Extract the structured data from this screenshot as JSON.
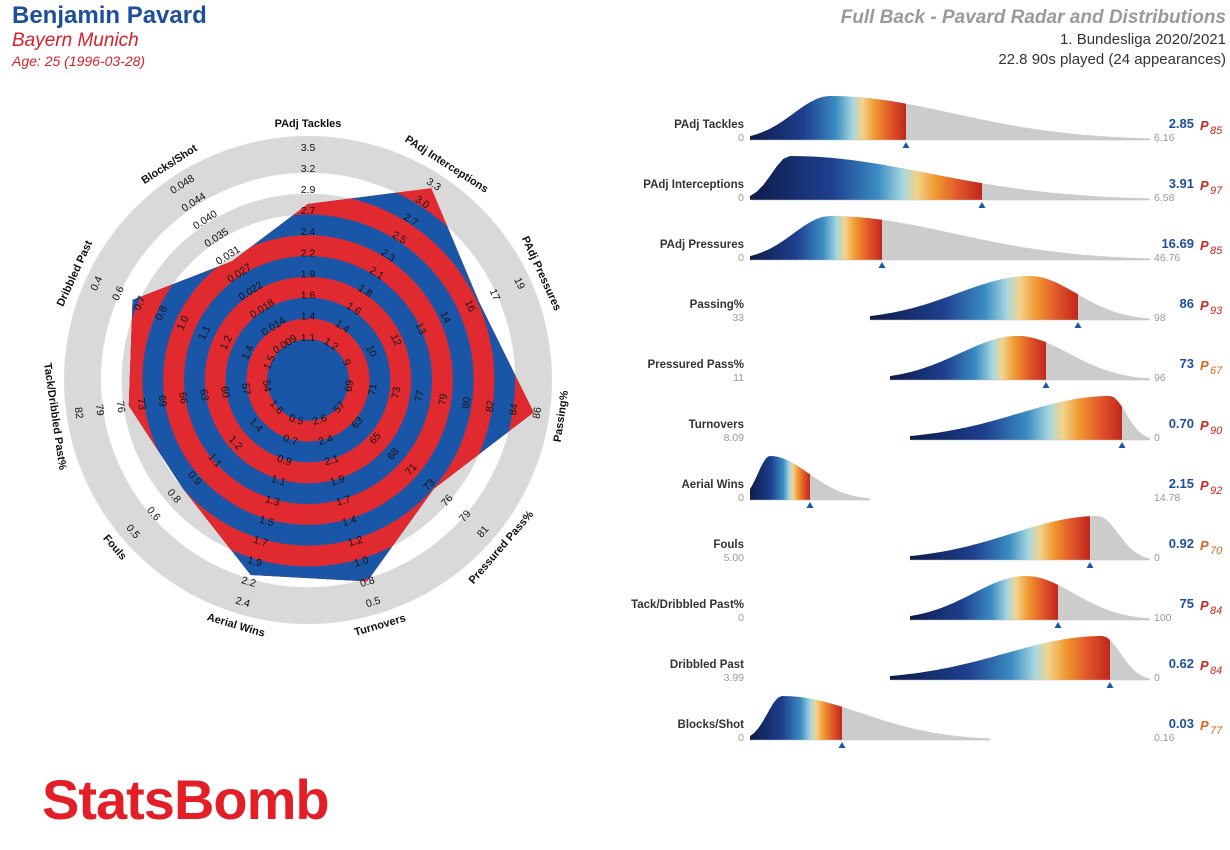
{
  "header": {
    "player_name": "Benjamin Pavard",
    "team": "Bayern Munich",
    "age": "Age: 25 (1996-03-28)",
    "title": "Full Back - Pavard Radar and Distributions",
    "league": "1. Bundesliga 2020/2021",
    "minutes": "22.8 90s played (24 appearances)"
  },
  "logo": {
    "text": "StatsBomb"
  },
  "colors": {
    "radar_blue": "#1a56a8",
    "radar_red": "#e02a30",
    "ring_grey": "#d9d9d9",
    "value_blue": "#1d4f9c",
    "percentile_red": "#c8281e",
    "percentile_orange": "#d2691e",
    "dist_grey": "#cccccc"
  },
  "chart_data": [
    {
      "type": "radar",
      "axes": [
        {
          "label": "PAdj Tackles",
          "ticks": [
            "1.1",
            "1.4",
            "1.6",
            "1.9",
            "2.2",
            "2.4",
            "2.7",
            "2.9",
            "3.2",
            "3.5"
          ],
          "value": 2.85,
          "range": [
            0.9,
            3.5
          ]
        },
        {
          "label": "PAdj Interceptions",
          "ticks": [
            "1.2",
            "1.4",
            "1.6",
            "1.8",
            "2.1",
            "2.3",
            "2.5",
            "2.7",
            "3.0",
            "3.3"
          ],
          "value": 3.91,
          "range": [
            1.0,
            3.3
          ]
        },
        {
          "label": "PAdj Pressures",
          "ticks": [
            "9",
            "10",
            "12",
            "13",
            "14",
            "16",
            "17",
            "19"
          ],
          "value": 16.69,
          "range": [
            7,
            19
          ]
        },
        {
          "label": "Passing%",
          "ticks": [
            "69",
            "71",
            "73",
            "77",
            "79",
            "80",
            "82",
            "84",
            "86"
          ],
          "value": 86,
          "range": [
            66,
            86
          ]
        },
        {
          "label": "Pressured Pass%",
          "ticks": [
            "57",
            "63",
            "65",
            "68",
            "71",
            "73",
            "76",
            "79",
            "81"
          ],
          "value": 73,
          "range": [
            54,
            81
          ]
        },
        {
          "label": "Turnovers",
          "ticks": [
            "2.6",
            "2.4",
            "2.1",
            "1.9",
            "1.7",
            "1.4",
            "1.2",
            "1.0",
            "0.8",
            "0.5"
          ],
          "value": 0.7,
          "range": [
            2.8,
            0.5
          ]
        },
        {
          "label": "Aerial Wins",
          "ticks": [
            "0.5",
            "0.7",
            "0.9",
            "1.1",
            "1.3",
            "1.5",
            "1.7",
            "1.9",
            "2.2",
            "2.4"
          ],
          "value": 2.15,
          "range": [
            0.3,
            2.4
          ]
        },
        {
          "label": "Fouls",
          "ticks": [
            "1.6",
            "1.4",
            "1.2",
            "1.1",
            "0.9",
            "0.8",
            "0.6",
            "0.5"
          ],
          "value": 0.92,
          "range": [
            1.9,
            0.5
          ]
        },
        {
          "label": "Tack/Dribbled Past%",
          "ticks": [
            "54",
            "57",
            "60",
            "63",
            "66",
            "69",
            "73",
            "76",
            "79",
            "82"
          ],
          "value": 75,
          "range": [
            51,
            82
          ]
        },
        {
          "label": "Dribbled Past",
          "ticks": [
            "1.5",
            "1.4",
            "1.2",
            "1.1",
            "1.0",
            "0.8",
            "0.7",
            "0.6",
            "0.4"
          ],
          "value": 0.62,
          "range": [
            1.7,
            0.4
          ]
        },
        {
          "label": "Blocks/Shot",
          "ticks": [
            "0.009",
            "0.014",
            "0.018",
            "0.022",
            "0.027",
            "0.031",
            "0.035",
            "0.040",
            "0.044",
            "0.048"
          ],
          "value": 0.03,
          "range": [
            0.005,
            0.048
          ]
        }
      ]
    },
    {
      "type": "area",
      "metrics": [
        {
          "label": "PAdj Tackles",
          "bold": false,
          "min_label": "0",
          "max_label": "6.16",
          "value": "2.85",
          "percentile": "85",
          "peak_frac": 0.2,
          "marker_frac": 0.39,
          "span": [
            0.0,
            1.0
          ],
          "pct_color": "red"
        },
        {
          "label": "PAdj Interceptions",
          "bold": true,
          "min_label": "0",
          "max_label": "6.58",
          "value": "3.91",
          "percentile": "97",
          "peak_frac": 0.1,
          "marker_frac": 0.58,
          "span": [
            0.0,
            1.0
          ],
          "pct_color": "red"
        },
        {
          "label": "PAdj Pressures",
          "bold": false,
          "min_label": "0",
          "max_label": "46.76",
          "value": "16.69",
          "percentile": "85",
          "peak_frac": 0.2,
          "marker_frac": 0.33,
          "span": [
            0.0,
            1.0
          ],
          "pct_color": "red"
        },
        {
          "label": "Passing%",
          "bold": false,
          "min_label": "33",
          "max_label": "98",
          "value": "86",
          "percentile": "93",
          "peak_frac": 0.7,
          "marker_frac": 0.82,
          "span": [
            0.3,
            1.0
          ],
          "pct_color": "red"
        },
        {
          "label": "Pressured Pass%",
          "bold": false,
          "min_label": "11",
          "max_label": "96",
          "value": "73",
          "percentile": "67",
          "peak_frac": 0.67,
          "marker_frac": 0.74,
          "span": [
            0.35,
            1.0
          ],
          "pct_color": "orange"
        },
        {
          "label": "Turnovers",
          "bold": false,
          "min_label": "8.09",
          "max_label": "0",
          "value": "0.70",
          "percentile": "90",
          "peak_frac": 0.9,
          "marker_frac": 0.93,
          "span": [
            0.4,
            1.0
          ],
          "pct_color": "red"
        },
        {
          "label": "Aerial Wins",
          "bold": false,
          "min_label": "0",
          "max_label": "14.78",
          "value": "2.15",
          "percentile": "92",
          "peak_frac": 0.05,
          "marker_frac": 0.15,
          "span": [
            0.0,
            0.3
          ],
          "pct_color": "red"
        },
        {
          "label": "Fouls",
          "bold": false,
          "min_label": "5.00",
          "max_label": "0",
          "value": "0.92",
          "percentile": "70",
          "peak_frac": 0.87,
          "marker_frac": 0.85,
          "span": [
            0.4,
            1.0
          ],
          "pct_color": "orange"
        },
        {
          "label": "Tack/Dribbled Past%",
          "bold": false,
          "min_label": "0",
          "max_label": "100",
          "value": "75",
          "percentile": "84",
          "peak_frac": 0.69,
          "marker_frac": 0.77,
          "span": [
            0.4,
            1.0
          ],
          "pct_color": "red"
        },
        {
          "label": "Dribbled Past",
          "bold": false,
          "min_label": "3.99",
          "max_label": "0",
          "value": "0.62",
          "percentile": "84",
          "peak_frac": 0.88,
          "marker_frac": 0.9,
          "span": [
            0.35,
            1.0
          ],
          "pct_color": "red"
        },
        {
          "label": "Blocks/Shot",
          "bold": false,
          "min_label": "0",
          "max_label": "0.16",
          "value": "0.03",
          "percentile": "77",
          "peak_frac": 0.08,
          "marker_frac": 0.23,
          "span": [
            0.0,
            0.6
          ],
          "pct_color": "orange"
        }
      ]
    }
  ]
}
